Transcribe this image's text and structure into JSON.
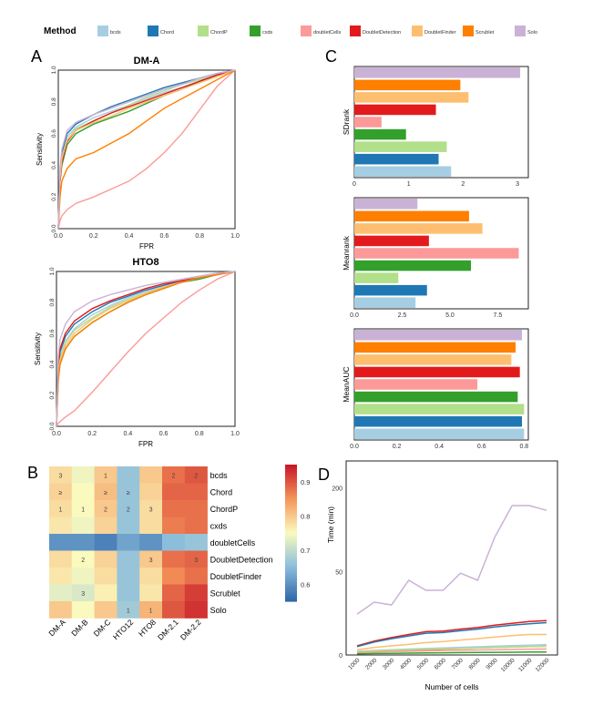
{
  "legend": {
    "title": "Method",
    "items": [
      {
        "label": "bcds",
        "color": "#a6cee3"
      },
      {
        "label": "Chord",
        "color": "#1f78b4"
      },
      {
        "label": "ChordP",
        "color": "#b2df8a"
      },
      {
        "label": "cxds",
        "color": "#33a02c"
      },
      {
        "label": "doubletCells",
        "color": "#fb9a99"
      },
      {
        "label": "DoubletDetection",
        "color": "#e31a1c"
      },
      {
        "label": "DoubletFinder",
        "color": "#fdbf6f"
      },
      {
        "label": "Scrublet",
        "color": "#ff7f00"
      },
      {
        "label": "Solo",
        "color": "#cab2d6"
      }
    ]
  },
  "panels": {
    "A": "A",
    "B": "B",
    "C": "C",
    "D": "D"
  },
  "chart_data": [
    {
      "panel": "A",
      "type": "line",
      "title": "DM-A",
      "xlabel": "FPR",
      "ylabel": "Sensitivity",
      "xlim": [
        0,
        1
      ],
      "ylim": [
        0,
        1
      ],
      "xticks": [
        "0.0",
        "0.2",
        "0.4",
        "0.6",
        "0.8",
        "1.0"
      ],
      "yticks": [
        "0.0",
        "0.2",
        "0.4",
        "0.6",
        "0.8",
        "1.0"
      ],
      "x": [
        0,
        0.01,
        0.02,
        0.05,
        0.1,
        0.2,
        0.3,
        0.4,
        0.5,
        0.6,
        0.7,
        0.8,
        0.9,
        1.0
      ],
      "series": [
        {
          "name": "bcds",
          "values": [
            0,
            0.35,
            0.45,
            0.58,
            0.64,
            0.7,
            0.74,
            0.78,
            0.82,
            0.86,
            0.89,
            0.93,
            0.96,
            1.0
          ]
        },
        {
          "name": "Chord",
          "values": [
            0,
            0.35,
            0.48,
            0.6,
            0.66,
            0.72,
            0.77,
            0.81,
            0.85,
            0.89,
            0.92,
            0.95,
            0.98,
            1.0
          ]
        },
        {
          "name": "ChordP",
          "values": [
            0,
            0.3,
            0.42,
            0.56,
            0.63,
            0.68,
            0.73,
            0.78,
            0.83,
            0.87,
            0.91,
            0.94,
            0.97,
            1.0
          ]
        },
        {
          "name": "cxds",
          "values": [
            0,
            0.3,
            0.4,
            0.53,
            0.6,
            0.66,
            0.7,
            0.74,
            0.79,
            0.84,
            0.88,
            0.93,
            0.97,
            1.0
          ]
        },
        {
          "name": "doubletCells",
          "values": [
            0,
            0.05,
            0.08,
            0.12,
            0.16,
            0.2,
            0.25,
            0.3,
            0.38,
            0.48,
            0.6,
            0.75,
            0.9,
            1.0
          ]
        },
        {
          "name": "DoubletDetection",
          "values": [
            0,
            0.3,
            0.42,
            0.55,
            0.62,
            0.68,
            0.73,
            0.77,
            0.81,
            0.85,
            0.89,
            0.93,
            0.97,
            1.0
          ]
        },
        {
          "name": "DoubletFinder",
          "values": [
            0,
            0.32,
            0.44,
            0.56,
            0.62,
            0.67,
            0.71,
            0.76,
            0.8,
            0.84,
            0.88,
            0.92,
            0.96,
            1.0
          ]
        },
        {
          "name": "Scrublet",
          "values": [
            0,
            0.2,
            0.3,
            0.38,
            0.44,
            0.48,
            0.54,
            0.6,
            0.68,
            0.76,
            0.82,
            0.88,
            0.94,
            1.0
          ]
        },
        {
          "name": "Solo",
          "values": [
            0,
            0.38,
            0.5,
            0.62,
            0.67,
            0.72,
            0.76,
            0.8,
            0.84,
            0.88,
            0.91,
            0.95,
            0.98,
            1.0
          ]
        }
      ]
    },
    {
      "panel": "A",
      "type": "line",
      "title": "HTO8",
      "xlabel": "FPR",
      "ylabel": "Sensitivity",
      "xlim": [
        0,
        1
      ],
      "ylim": [
        0,
        1
      ],
      "xticks": [
        "0.0",
        "0.2",
        "0.4",
        "0.6",
        "0.8",
        "1.0"
      ],
      "yticks": [
        "0.0",
        "0.2",
        "0.4",
        "0.6",
        "0.8",
        "1.0"
      ],
      "x": [
        0,
        0.01,
        0.02,
        0.05,
        0.1,
        0.2,
        0.3,
        0.4,
        0.5,
        0.6,
        0.7,
        0.8,
        0.9,
        1.0
      ],
      "series": [
        {
          "name": "bcds",
          "values": [
            0,
            0.35,
            0.45,
            0.55,
            0.63,
            0.72,
            0.78,
            0.83,
            0.87,
            0.9,
            0.93,
            0.96,
            0.98,
            1.0
          ]
        },
        {
          "name": "Chord",
          "values": [
            0,
            0.38,
            0.48,
            0.58,
            0.66,
            0.74,
            0.8,
            0.84,
            0.88,
            0.91,
            0.94,
            0.96,
            0.98,
            1.0
          ]
        },
        {
          "name": "ChordP",
          "values": [
            0,
            0.33,
            0.43,
            0.54,
            0.62,
            0.7,
            0.77,
            0.82,
            0.86,
            0.9,
            0.93,
            0.96,
            0.98,
            1.0
          ]
        },
        {
          "name": "cxds",
          "values": [
            0,
            0.3,
            0.4,
            0.5,
            0.58,
            0.67,
            0.74,
            0.8,
            0.85,
            0.89,
            0.93,
            0.95,
            0.98,
            1.0
          ]
        },
        {
          "name": "doubletCells",
          "values": [
            0,
            0.02,
            0.03,
            0.06,
            0.1,
            0.22,
            0.35,
            0.48,
            0.6,
            0.7,
            0.8,
            0.88,
            0.95,
            1.0
          ]
        },
        {
          "name": "DoubletDetection",
          "values": [
            0,
            0.4,
            0.5,
            0.6,
            0.68,
            0.76,
            0.81,
            0.85,
            0.89,
            0.92,
            0.94,
            0.96,
            0.98,
            1.0
          ]
        },
        {
          "name": "DoubletFinder",
          "values": [
            0,
            0.32,
            0.42,
            0.52,
            0.6,
            0.69,
            0.76,
            0.81,
            0.86,
            0.9,
            0.93,
            0.96,
            0.98,
            1.0
          ]
        },
        {
          "name": "Scrublet",
          "values": [
            0,
            0.3,
            0.4,
            0.5,
            0.58,
            0.67,
            0.74,
            0.8,
            0.85,
            0.89,
            0.93,
            0.96,
            0.98,
            1.0
          ]
        },
        {
          "name": "Solo",
          "values": [
            0,
            0.45,
            0.56,
            0.66,
            0.74,
            0.81,
            0.85,
            0.88,
            0.91,
            0.93,
            0.95,
            0.97,
            0.99,
            1.0
          ]
        }
      ]
    },
    {
      "panel": "B",
      "type": "heatmap",
      "columns": [
        "DM-A",
        "DM-B",
        "DM-C",
        "HTO12",
        "HTO8",
        "DM-2.1",
        "DM-2.2"
      ],
      "rows": [
        "bcds",
        "Chord",
        "ChordP",
        "cxds",
        "doubletCells",
        "DoubletDetection",
        "DoubletFinder",
        "Scrublet",
        "Solo"
      ],
      "values": [
        [
          0.78,
          0.74,
          0.8,
          0.66,
          0.8,
          0.88,
          0.9
        ],
        [
          0.79,
          0.75,
          0.81,
          0.66,
          0.79,
          0.89,
          0.89
        ],
        [
          0.78,
          0.75,
          0.8,
          0.66,
          0.78,
          0.88,
          0.88
        ],
        [
          0.77,
          0.74,
          0.79,
          0.66,
          0.78,
          0.87,
          0.88
        ],
        [
          0.6,
          0.6,
          0.58,
          0.62,
          0.6,
          0.65,
          0.66
        ],
        [
          0.78,
          0.75,
          0.79,
          0.66,
          0.8,
          0.88,
          0.89
        ],
        [
          0.77,
          0.74,
          0.78,
          0.66,
          0.78,
          0.86,
          0.88
        ],
        [
          0.73,
          0.72,
          0.76,
          0.66,
          0.77,
          0.89,
          0.92
        ],
        [
          0.8,
          0.75,
          0.8,
          0.67,
          0.82,
          0.9,
          0.93
        ]
      ],
      "labels": [
        [
          "3",
          "",
          "1",
          "",
          "",
          "2",
          "2"
        ],
        [
          "≥",
          "",
          "≥",
          "≥",
          "",
          "",
          ""
        ],
        [
          "1",
          "1",
          "2",
          "2",
          "3",
          "",
          ""
        ],
        [
          "",
          "",
          "",
          "",
          "",
          "",
          ""
        ],
        [
          "",
          "",
          "",
          "",
          "",
          "",
          ""
        ],
        [
          "",
          "2",
          "",
          "",
          "3",
          "",
          "3"
        ],
        [
          "",
          "",
          "",
          "",
          "",
          "",
          ""
        ],
        [
          "",
          "3",
          "",
          "",
          "",
          "",
          ""
        ],
        [
          "",
          "",
          "",
          "1",
          "1",
          "",
          ""
        ]
      ],
      "colorbar": {
        "ticks": [
          "0.9",
          "0.8",
          "0.7",
          "0.6"
        ],
        "min": 0.55,
        "max": 0.95
      }
    },
    {
      "panel": "C",
      "type": "bar",
      "orientation": "horizontal",
      "ylabel": "SDrank",
      "xlim": [
        0,
        3.2
      ],
      "xticks": [
        "0",
        "1",
        "2",
        "3"
      ],
      "categories": [
        "Solo",
        "Scrublet",
        "DoubletFinder",
        "DoubletDetection",
        "doubletCells",
        "cxds",
        "ChordP",
        "Chord",
        "bcds"
      ],
      "values": [
        3.05,
        1.95,
        2.1,
        1.5,
        0.5,
        0.95,
        1.7,
        1.55,
        1.78
      ]
    },
    {
      "panel": "C",
      "type": "bar",
      "orientation": "horizontal",
      "ylabel": "Meanrank",
      "xlim": [
        0,
        9.1
      ],
      "xticks": [
        "0.0",
        "2.5",
        "5.0",
        "7.5"
      ],
      "categories": [
        "Solo",
        "Scrublet",
        "DoubletFinder",
        "DoubletDetection",
        "doubletCells",
        "cxds",
        "ChordP",
        "Chord",
        "bcds"
      ],
      "values": [
        3.3,
        6.0,
        6.7,
        3.9,
        8.6,
        6.1,
        2.3,
        3.8,
        3.2
      ]
    },
    {
      "panel": "C",
      "type": "bar",
      "orientation": "horizontal",
      "ylabel": "MeanAUC",
      "xlim": [
        0,
        0.82
      ],
      "xticks": [
        "0.0",
        "0.2",
        "0.4",
        "0.6",
        "0.8"
      ],
      "categories": [
        "Solo",
        "Scrublet",
        "DoubletFinder",
        "DoubletDetection",
        "doubletCells",
        "cxds",
        "ChordP",
        "Chord",
        "bcds"
      ],
      "values": [
        0.79,
        0.76,
        0.74,
        0.78,
        0.58,
        0.77,
        0.8,
        0.79,
        0.8
      ]
    },
    {
      "panel": "D",
      "type": "line",
      "xlabel": "Number of cells",
      "ylabel": "Time (min)",
      "x": [
        1000,
        2000,
        3000,
        4000,
        5000,
        6000,
        7000,
        8000,
        9000,
        10000,
        11000,
        12000
      ],
      "xticks": [
        "1000",
        "2000",
        "3000",
        "4000",
        "5000",
        "6000",
        "7000",
        "8000",
        "9000",
        "10000",
        "11000",
        "12000"
      ],
      "yticks": [
        {
          "label": "0",
          "value": 0
        },
        {
          "label": "50",
          "value": 50
        },
        {
          "label": "200",
          "value": 200
        }
      ],
      "scale": "sqrt",
      "ylim": [
        0,
        270
      ],
      "series": [
        {
          "name": "Solo",
          "values": [
            12,
            20,
            18,
            40,
            30,
            30,
            48,
            40,
            100,
            160,
            160,
            150
          ]
        },
        {
          "name": "DoubletDetection",
          "values": [
            0.6,
            1.4,
            2.2,
            3.0,
            3.9,
            4.1,
            4.8,
            5.4,
            6.4,
            7.2,
            8.0,
            8.5
          ]
        },
        {
          "name": "Chord",
          "values": [
            0.5,
            1.2,
            1.9,
            2.6,
            3.4,
            3.6,
            4.2,
            4.8,
            5.6,
            6.4,
            7.0,
            7.5
          ]
        },
        {
          "name": "DoubletFinder",
          "values": [
            0.2,
            0.4,
            0.6,
            0.8,
            1.1,
            1.3,
            1.6,
            1.9,
            2.3,
            2.7,
            3.0,
            3.0
          ]
        },
        {
          "name": "Scrublet",
          "values": [
            0.05,
            0.08,
            0.12,
            0.16,
            0.2,
            0.25,
            0.3,
            0.35,
            0.4,
            0.45,
            0.5,
            0.55
          ]
        },
        {
          "name": "bcds",
          "values": [
            0.1,
            0.15,
            0.2,
            0.25,
            0.3,
            0.36,
            0.42,
            0.48,
            0.55,
            0.62,
            0.7,
            0.78
          ]
        },
        {
          "name": "ChordP",
          "values": [
            0.08,
            0.12,
            0.16,
            0.2,
            0.24,
            0.28,
            0.32,
            0.36,
            0.4,
            0.45,
            0.5,
            0.55
          ]
        },
        {
          "name": "doubletCells",
          "values": [
            0.04,
            0.06,
            0.08,
            0.1,
            0.12,
            0.14,
            0.16,
            0.18,
            0.2,
            0.22,
            0.24,
            0.26
          ]
        },
        {
          "name": "cxds",
          "values": [
            0.01,
            0.015,
            0.02,
            0.025,
            0.03,
            0.035,
            0.04,
            0.045,
            0.05,
            0.055,
            0.06,
            0.065
          ]
        }
      ]
    }
  ]
}
